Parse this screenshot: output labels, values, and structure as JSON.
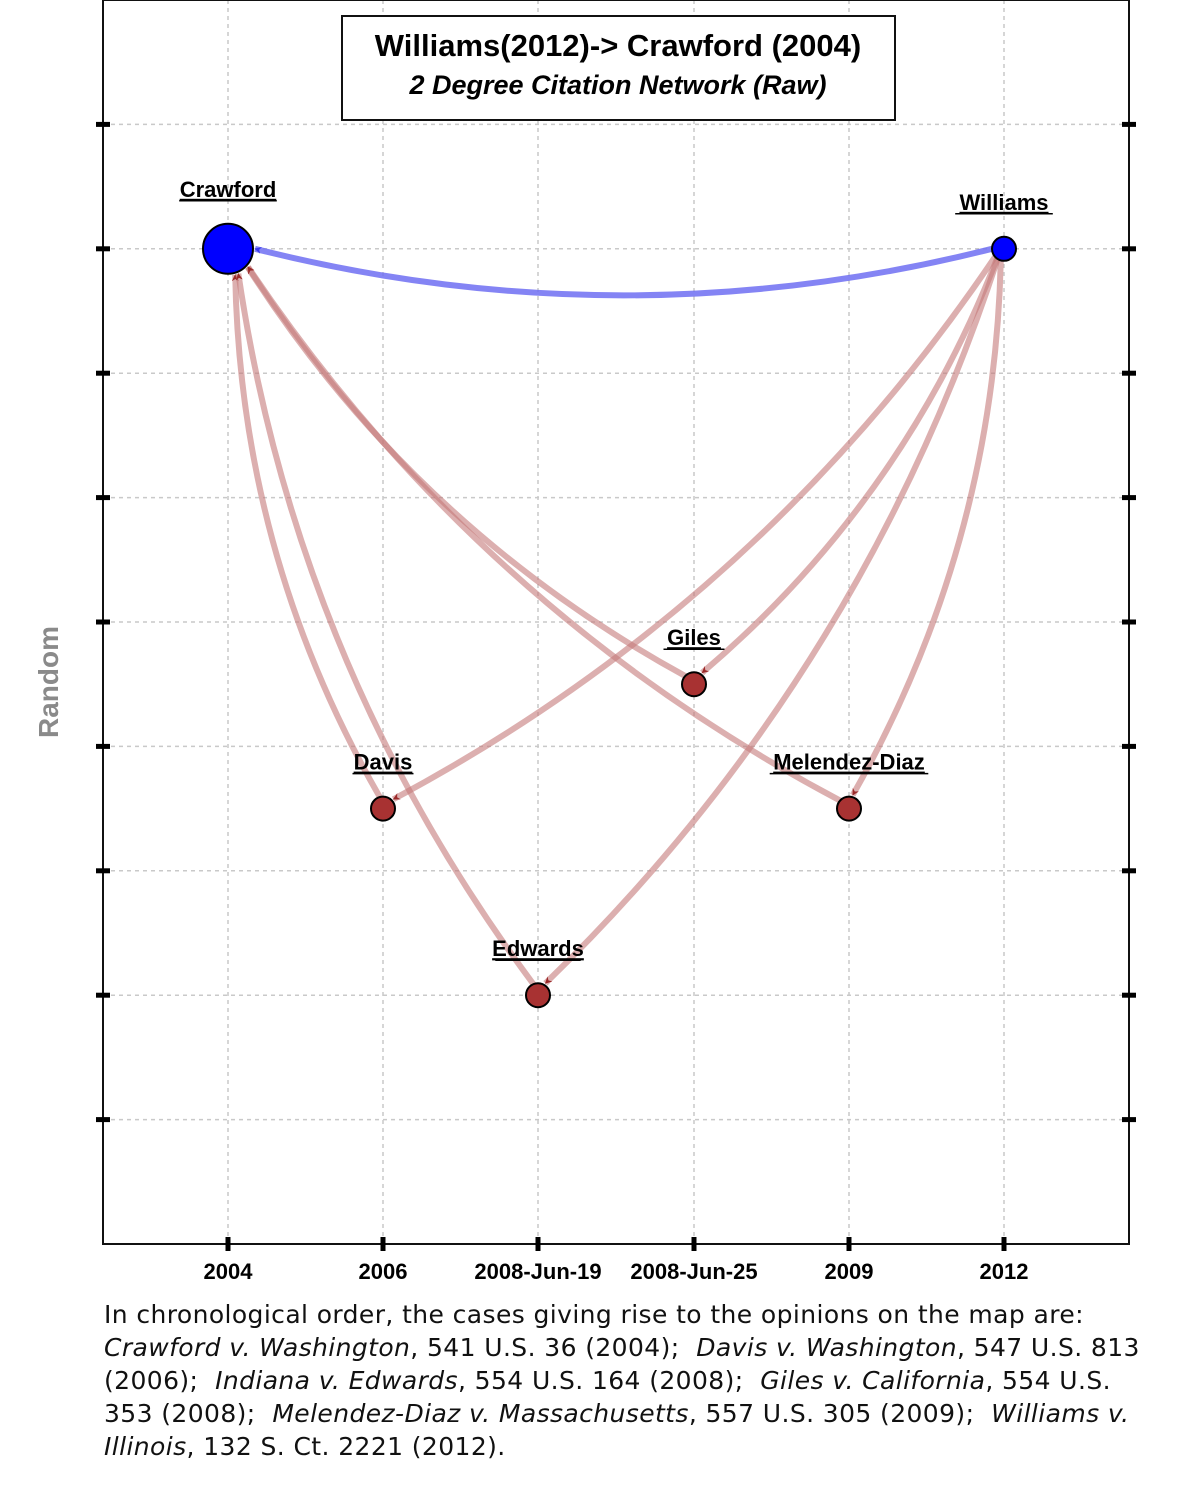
{
  "title": "Williams(2012)-> Crawford (2004)",
  "subtitle": "2 Degree Citation Network (Raw)",
  "ylabel": "Random",
  "colors": {
    "focus_node": "#0000ff",
    "focus_edge": "#6f6ff2",
    "other_node": "#a83232",
    "other_edge": "#c47a7a"
  },
  "chart_data": {
    "type": "network",
    "x_ticks": [
      "2004",
      "2006",
      "2008-Jun-19",
      "2008-Jun-25",
      "2009",
      "2012"
    ],
    "y_ticks": 9,
    "grid": true,
    "nodes": [
      {
        "id": "Crawford",
        "label": "Crawford",
        "x": "2004",
        "y": 8,
        "size": "large",
        "group": "focus"
      },
      {
        "id": "Williams",
        "label": "Williams",
        "x": "2012",
        "y": 8,
        "size": "small",
        "group": "focus"
      },
      {
        "id": "Giles",
        "label": "Giles",
        "x": "2008-Jun-25",
        "y": 4.5,
        "size": "small",
        "group": "other"
      },
      {
        "id": "Davis",
        "label": "Davis",
        "x": "2006",
        "y": 3.5,
        "size": "small",
        "group": "other"
      },
      {
        "id": "Melendez-Diaz",
        "label": "Melendez-Diaz",
        "x": "2009",
        "y": 3.5,
        "size": "small",
        "group": "other"
      },
      {
        "id": "Edwards",
        "label": "Edwards",
        "x": "2008-Jun-19",
        "y": 2,
        "size": "small",
        "group": "other"
      }
    ],
    "edges": [
      {
        "from": "Williams",
        "to": "Crawford",
        "group": "focus"
      },
      {
        "from": "Davis",
        "to": "Crawford",
        "group": "other"
      },
      {
        "from": "Edwards",
        "to": "Crawford",
        "group": "other"
      },
      {
        "from": "Giles",
        "to": "Crawford",
        "group": "other"
      },
      {
        "from": "Melendez-Diaz",
        "to": "Crawford",
        "group": "other"
      },
      {
        "from": "Williams",
        "to": "Davis",
        "group": "other"
      },
      {
        "from": "Williams",
        "to": "Giles",
        "group": "other"
      },
      {
        "from": "Williams",
        "to": "Edwards",
        "group": "other"
      },
      {
        "from": "Williams",
        "to": "Melendez-Diaz",
        "group": "other"
      }
    ]
  },
  "caption": {
    "intro": "In chronological order, the cases giving rise to the opinions on the map are:",
    "cases": [
      {
        "name": "Crawford v. Washington",
        "cite": ", 541 U.S. 36 (2004);"
      },
      {
        "name": "Davis v. Washington",
        "cite": ", 547 U.S. 813 (2006);"
      },
      {
        "name": "Indiana v. Edwards",
        "cite": ", 554 U.S. 164 (2008);"
      },
      {
        "name": "Giles v. California",
        "cite": ", 554 U.S. 353 (2008);"
      },
      {
        "name": "Melendez-Diaz v. Massachusetts",
        "cite": ", 557 U.S. 305 (2009);"
      },
      {
        "name": "Williams v. Illinois",
        "cite": ", 132 S. Ct. 2221 (2012)."
      }
    ]
  }
}
